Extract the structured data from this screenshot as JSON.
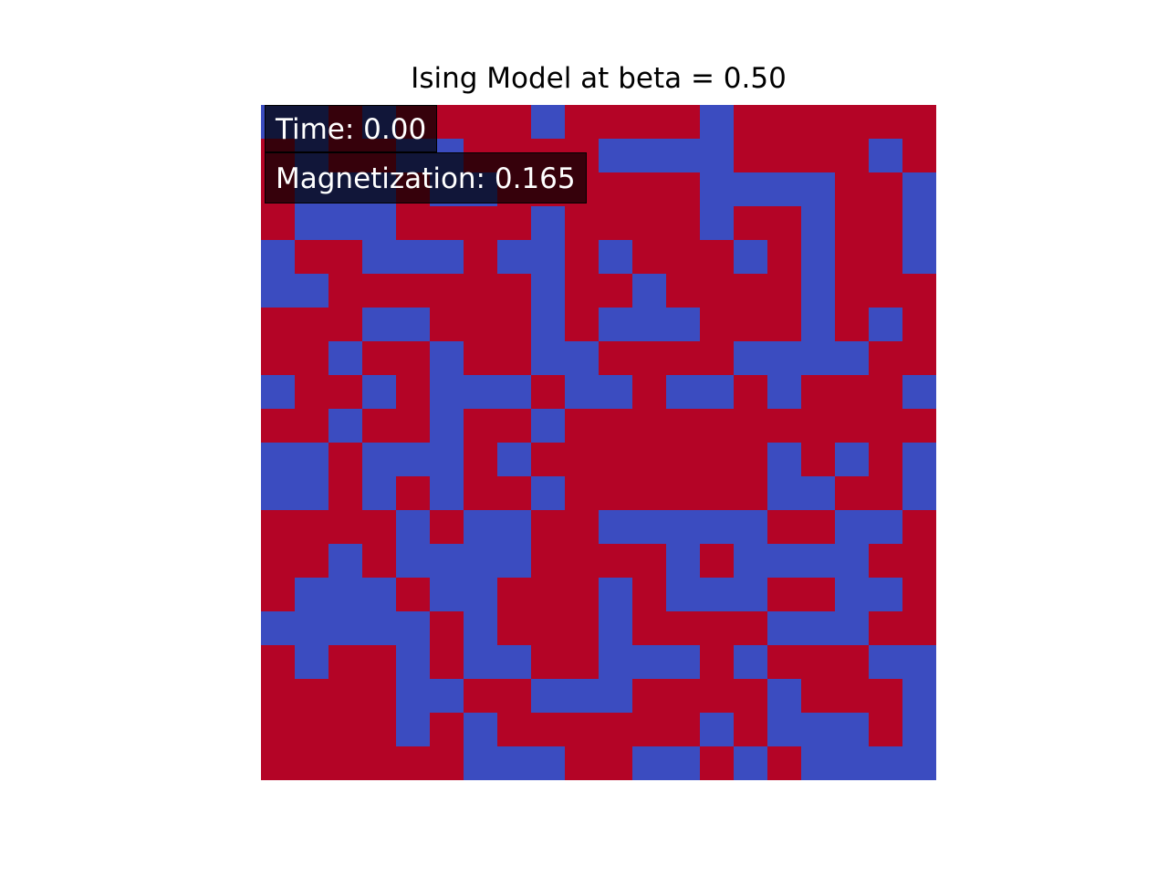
{
  "chart_data": {
    "type": "heatmap",
    "title": "Ising Model at beta = 0.50",
    "xlabel": "",
    "ylabel": "",
    "axes_visible": false,
    "colormap": "coolwarm",
    "colors": {
      "spin_up": "#b40426",
      "spin_down": "#3b4cc0"
    },
    "spin_legend": {
      "1": "spin_up",
      "-1": "spin_down"
    },
    "grid_size": [
      20,
      20
    ],
    "spins": [
      [
        -1,
        -1,
        1,
        -1,
        1,
        1,
        1,
        1,
        -1,
        1,
        1,
        1,
        1,
        -1,
        1,
        1,
        1,
        1,
        1,
        1
      ],
      [
        1,
        -1,
        1,
        1,
        -1,
        -1,
        1,
        1,
        1,
        1,
        -1,
        -1,
        -1,
        -1,
        1,
        1,
        1,
        1,
        -1,
        1
      ],
      [
        1,
        -1,
        -1,
        -1,
        1,
        -1,
        -1,
        1,
        1,
        1,
        1,
        1,
        1,
        -1,
        -1,
        -1,
        -1,
        1,
        1,
        -1
      ],
      [
        1,
        -1,
        -1,
        -1,
        1,
        1,
        1,
        1,
        -1,
        1,
        1,
        1,
        1,
        -1,
        1,
        1,
        -1,
        1,
        1,
        -1
      ],
      [
        -1,
        1,
        1,
        -1,
        -1,
        -1,
        1,
        -1,
        -1,
        1,
        -1,
        1,
        1,
        1,
        -1,
        1,
        -1,
        1,
        1,
        -1
      ],
      [
        -1,
        -1,
        1,
        1,
        1,
        1,
        1,
        1,
        -1,
        1,
        1,
        -1,
        1,
        1,
        1,
        1,
        -1,
        1,
        1,
        1
      ],
      [
        1,
        1,
        1,
        -1,
        -1,
        1,
        1,
        1,
        -1,
        1,
        -1,
        -1,
        -1,
        1,
        1,
        1,
        -1,
        1,
        -1,
        1
      ],
      [
        1,
        1,
        -1,
        1,
        1,
        -1,
        1,
        1,
        -1,
        -1,
        1,
        1,
        1,
        1,
        -1,
        -1,
        -1,
        -1,
        1,
        1
      ],
      [
        -1,
        1,
        1,
        -1,
        1,
        -1,
        -1,
        -1,
        1,
        -1,
        -1,
        1,
        -1,
        -1,
        1,
        -1,
        1,
        1,
        1,
        -1
      ],
      [
        1,
        1,
        -1,
        1,
        1,
        -1,
        1,
        1,
        -1,
        1,
        1,
        1,
        1,
        1,
        1,
        1,
        1,
        1,
        1,
        1
      ],
      [
        -1,
        -1,
        1,
        -1,
        -1,
        -1,
        1,
        -1,
        1,
        1,
        1,
        1,
        1,
        1,
        1,
        -1,
        1,
        -1,
        1,
        -1
      ],
      [
        -1,
        -1,
        1,
        -1,
        1,
        -1,
        1,
        1,
        -1,
        1,
        1,
        1,
        1,
        1,
        1,
        -1,
        -1,
        1,
        1,
        -1
      ],
      [
        1,
        1,
        1,
        1,
        -1,
        1,
        -1,
        -1,
        1,
        1,
        -1,
        -1,
        -1,
        -1,
        -1,
        1,
        1,
        -1,
        -1,
        1
      ],
      [
        1,
        1,
        -1,
        1,
        -1,
        -1,
        -1,
        -1,
        1,
        1,
        1,
        1,
        -1,
        1,
        -1,
        -1,
        -1,
        -1,
        1,
        1
      ],
      [
        1,
        -1,
        -1,
        -1,
        1,
        -1,
        -1,
        1,
        1,
        1,
        -1,
        1,
        -1,
        -1,
        -1,
        1,
        1,
        -1,
        -1,
        1
      ],
      [
        -1,
        -1,
        -1,
        -1,
        -1,
        1,
        -1,
        1,
        1,
        1,
        -1,
        1,
        1,
        1,
        1,
        -1,
        -1,
        -1,
        1,
        1
      ],
      [
        1,
        -1,
        1,
        1,
        -1,
        1,
        -1,
        -1,
        1,
        1,
        -1,
        -1,
        -1,
        1,
        -1,
        1,
        1,
        1,
        -1,
        -1
      ],
      [
        1,
        1,
        1,
        1,
        -1,
        -1,
        1,
        1,
        -1,
        -1,
        -1,
        1,
        1,
        1,
        1,
        -1,
        1,
        1,
        1,
        -1
      ],
      [
        1,
        1,
        1,
        1,
        -1,
        1,
        -1,
        1,
        1,
        1,
        1,
        1,
        1,
        -1,
        1,
        -1,
        -1,
        -1,
        1,
        -1
      ],
      [
        1,
        1,
        1,
        1,
        1,
        1,
        -1,
        -1,
        -1,
        1,
        1,
        -1,
        -1,
        1,
        -1,
        1,
        -1,
        -1,
        -1,
        -1
      ]
    ]
  },
  "overlay": {
    "time_text": "Time: 0.00",
    "magnetization_text": "Magnetization: 0.165"
  }
}
